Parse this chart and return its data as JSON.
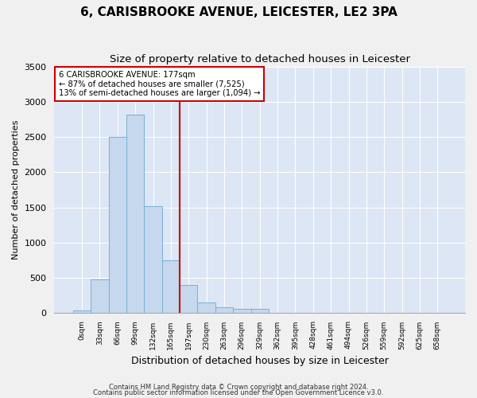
{
  "title": "6, CARISBROOKE AVENUE, LEICESTER, LE2 3PA",
  "subtitle": "Size of property relative to detached houses in Leicester",
  "xlabel": "Distribution of detached houses by size in Leicester",
  "ylabel": "Number of detached properties",
  "footnote1": "Contains HM Land Registry data © Crown copyright and database right 2024.",
  "footnote2": "Contains public sector information licensed under the Open Government Licence v3.0.",
  "bin_labels": [
    "0sqm",
    "33sqm",
    "66sqm",
    "99sqm",
    "132sqm",
    "165sqm",
    "197sqm",
    "230sqm",
    "263sqm",
    "296sqm",
    "329sqm",
    "362sqm",
    "395sqm",
    "428sqm",
    "461sqm",
    "494sqm",
    "526sqm",
    "559sqm",
    "592sqm",
    "625sqm",
    "658sqm"
  ],
  "bar_values": [
    25,
    470,
    2510,
    2820,
    1520,
    750,
    390,
    140,
    75,
    55,
    55,
    0,
    0,
    0,
    0,
    0,
    0,
    0,
    0,
    0,
    0
  ],
  "bar_color": "#c5d8ed",
  "bar_edge_color": "#7aafd4",
  "vline_x_index": 5.5,
  "annotation_title": "6 CARISBROOKE AVENUE: 177sqm",
  "annotation_line1": "← 87% of detached houses are smaller (7,525)",
  "annotation_line2": "13% of semi-detached houses are larger (1,094) →",
  "vline_color": "#cc0000",
  "annotation_box_edgecolor": "#cc0000",
  "ylim": [
    0,
    3500
  ],
  "yticks": [
    0,
    500,
    1000,
    1500,
    2000,
    2500,
    3000,
    3500
  ],
  "background_color": "#dce6f5",
  "grid_color": "#ffffff",
  "title_fontsize": 11,
  "subtitle_fontsize": 9.5
}
